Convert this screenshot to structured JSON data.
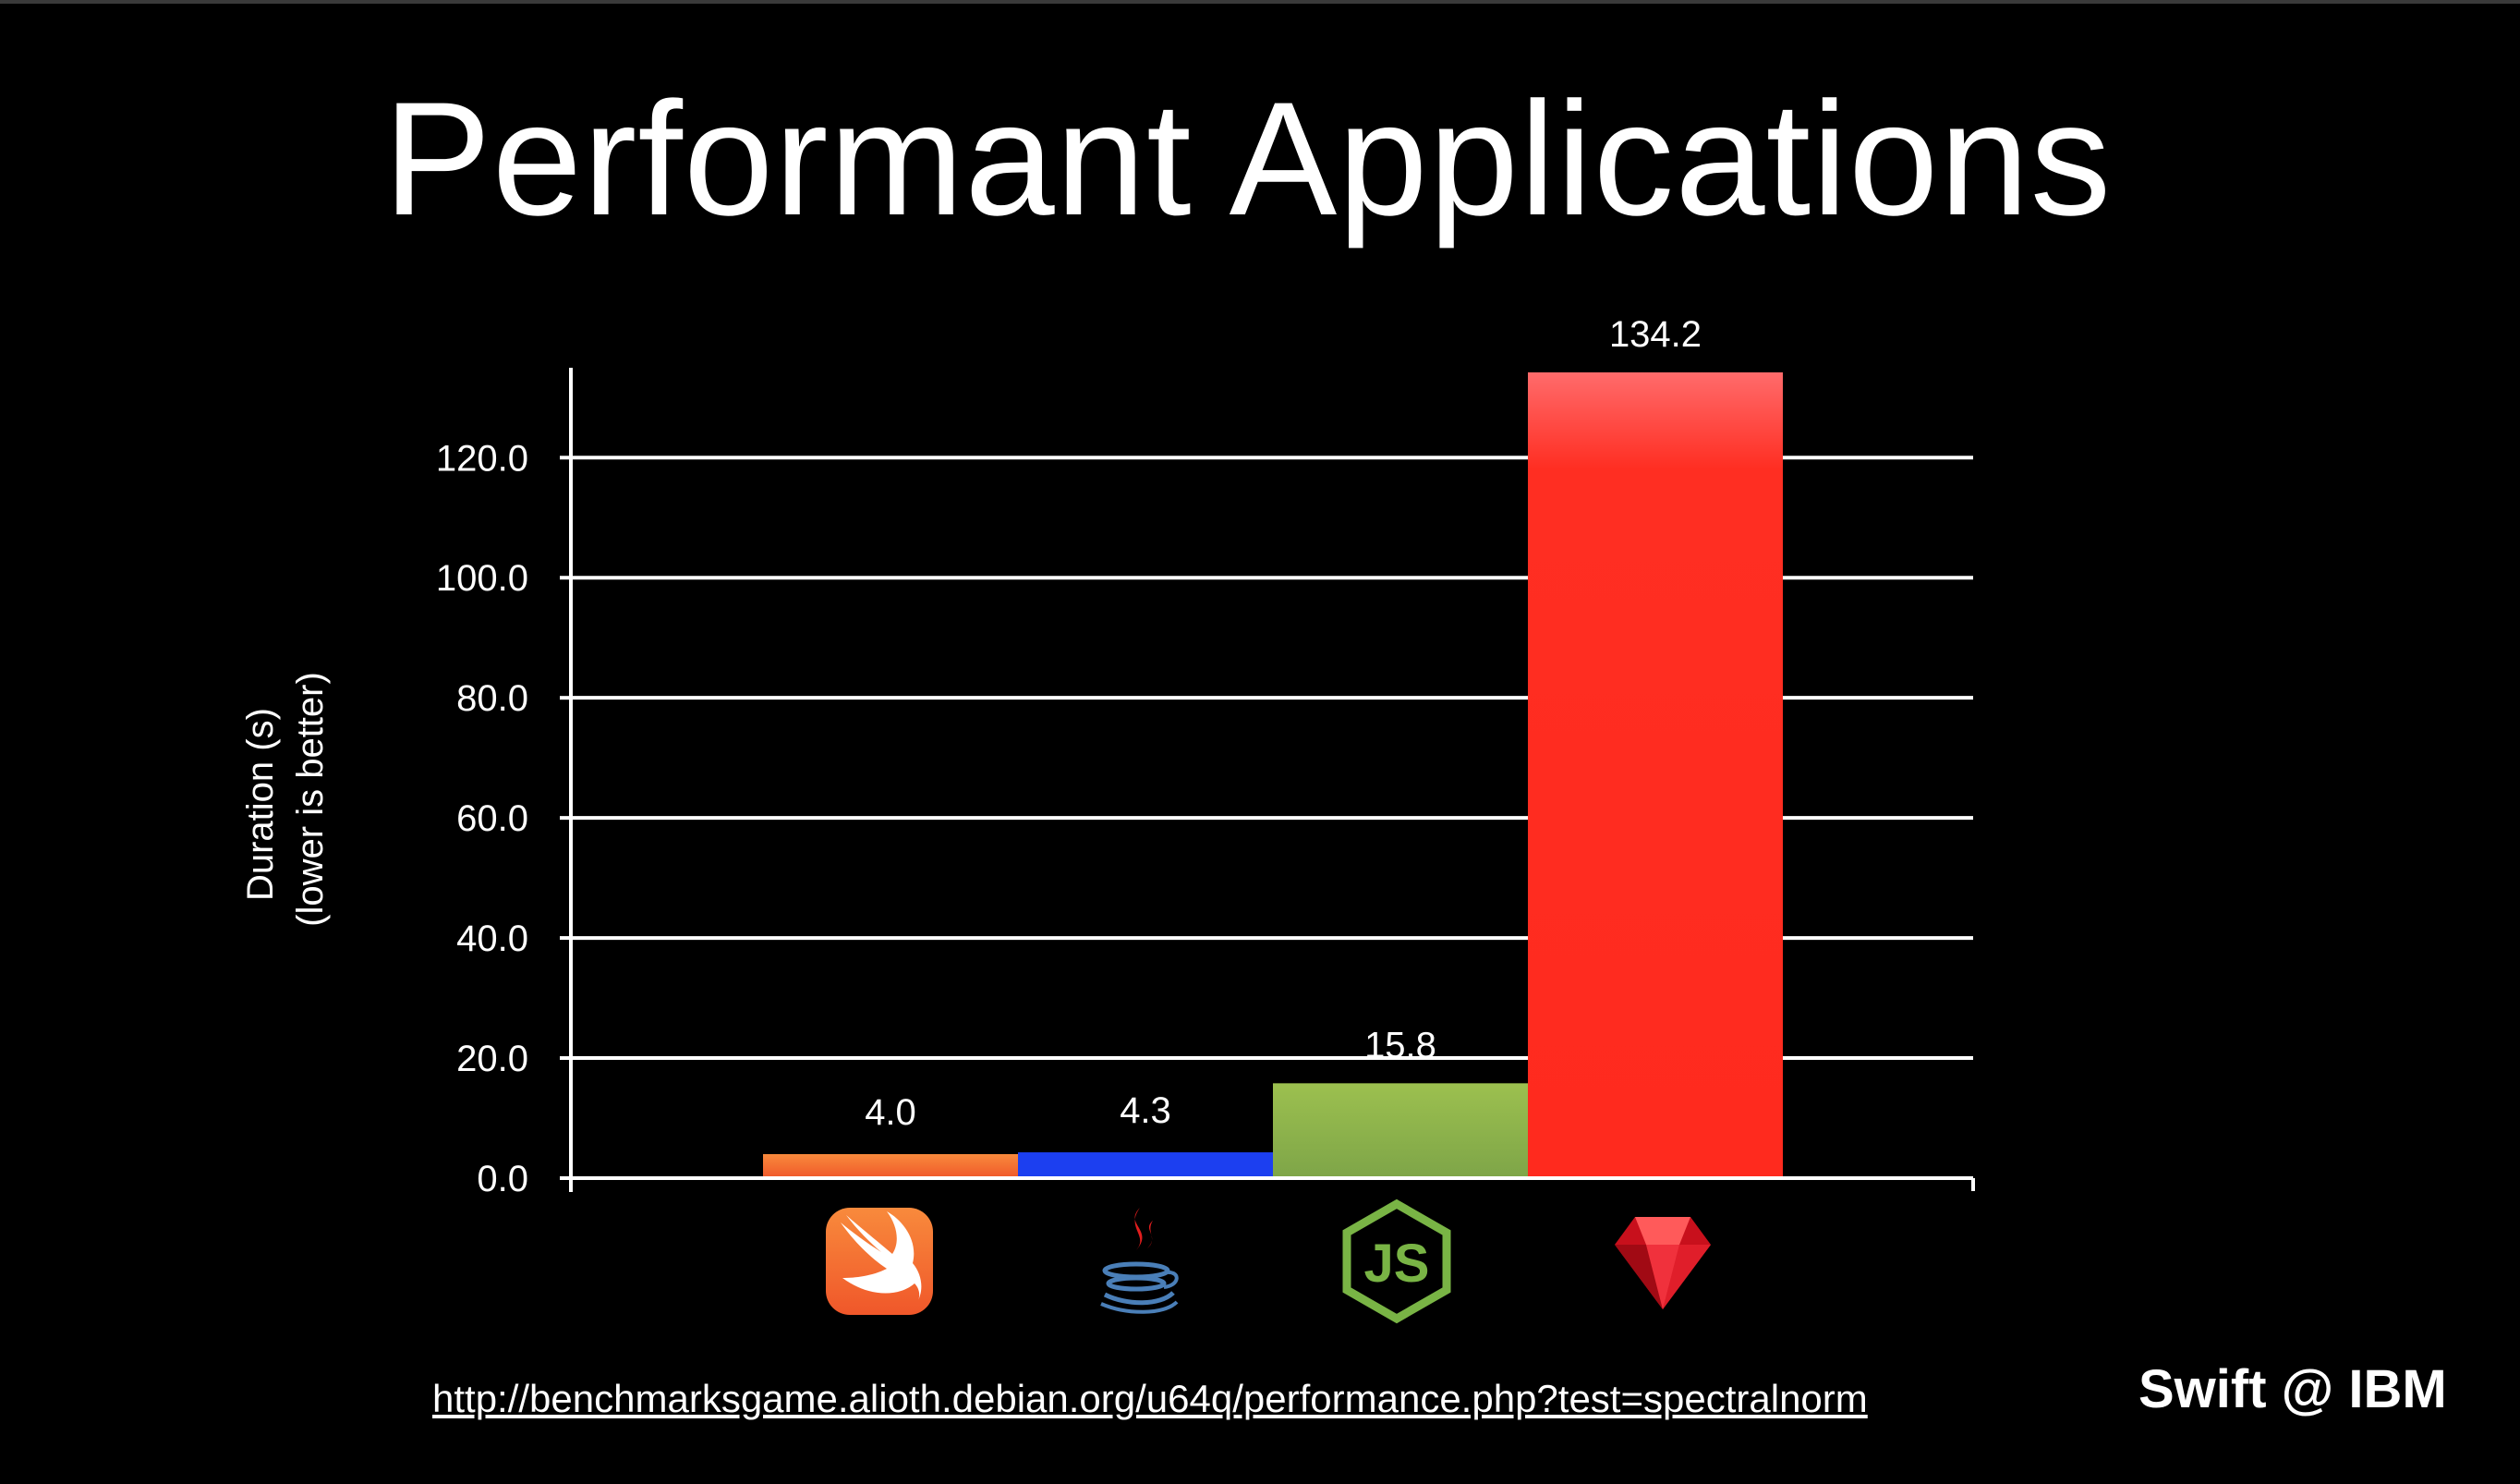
{
  "title": "Performant Applications",
  "source_url": "http://benchmarksgame.alioth.debian.org/u64q/performance.php?test=spectralnorm",
  "brand": "Swift @ IBM",
  "chart_data": {
    "type": "bar",
    "ylabel_line1": "Duration (s)",
    "ylabel_line2": "(lower is better)",
    "ylim": [
      0,
      134.2
    ],
    "yticks": [
      0,
      20,
      40,
      60,
      80,
      100,
      120
    ],
    "ytick_labels": [
      "0.0",
      "20.0",
      "40.0",
      "60.0",
      "80.0",
      "100.0",
      "120.0"
    ],
    "grid": true,
    "categories": [
      "swift-icon",
      "java-icon",
      "nodejs-icon",
      "ruby-icon"
    ],
    "values": [
      4.0,
      4.3,
      15.8,
      134.2
    ],
    "value_labels": [
      "4.0",
      "4.3",
      "15.8",
      "134.2"
    ],
    "colors": [
      "#f58220",
      "#1c3ff0",
      "#8fb450",
      "#ff2a1e"
    ]
  }
}
